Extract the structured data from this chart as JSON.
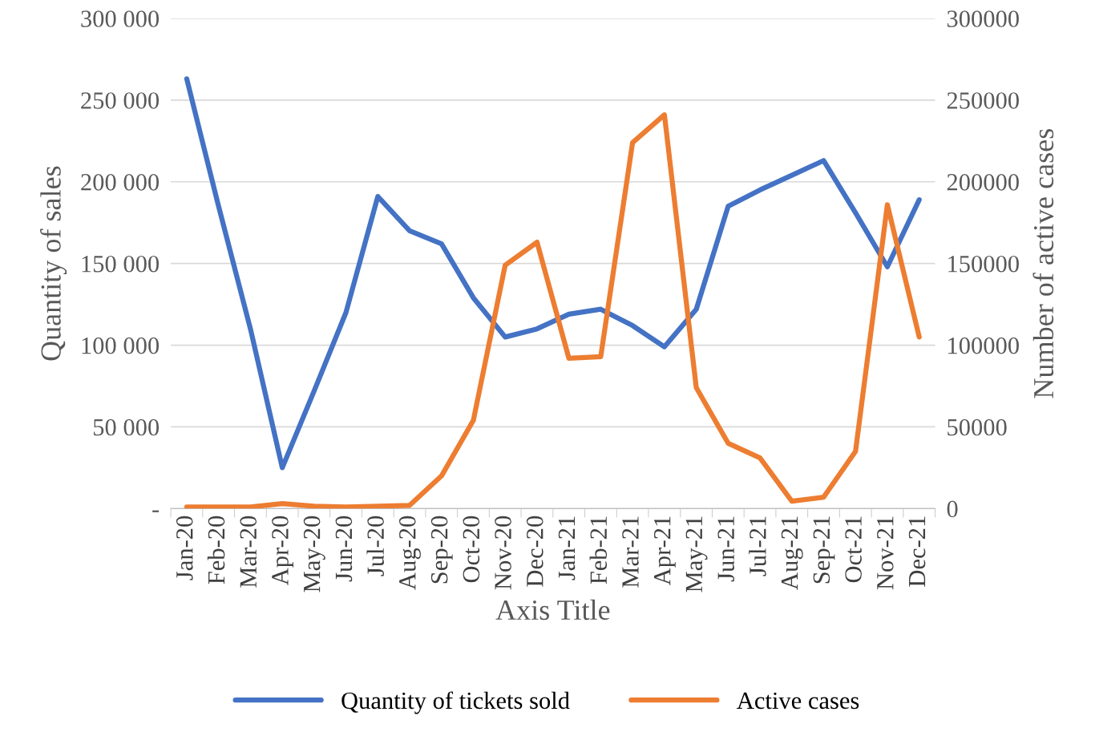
{
  "chart_data": {
    "type": "line",
    "xlabel": "Axis Title",
    "ylabel": "Quantity of sales",
    "y2label": "Number of active cases",
    "categories": [
      "Jan-20",
      "Feb-20",
      "Mar-20",
      "Apr-20",
      "May-20",
      "Jun-20",
      "Jul-20",
      "Aug-20",
      "Sep-20",
      "Oct-20",
      "Nov-20",
      "Dec-20",
      "Jan-21",
      "Feb-21",
      "Mar-21",
      "Apr-21",
      "May-21",
      "Jun-21",
      "Jul-21",
      "Aug-21",
      "Sep-21",
      "Oct-21",
      "Nov-21",
      "Dec-21"
    ],
    "series": [
      {
        "name": "Quantity of tickets sold",
        "color": "#4472c4",
        "values": [
          263000,
          185000,
          110000,
          25000,
          72000,
          120000,
          191000,
          170000,
          162000,
          129000,
          105000,
          110000,
          119000,
          122000,
          112000,
          99000,
          122000,
          185000,
          195000,
          204000,
          213000,
          181000,
          148000,
          189000
        ]
      },
      {
        "name": "Active cases",
        "color": "#ed7d31",
        "axis": "y2",
        "values": [
          1000,
          1000,
          1000,
          3000,
          1500,
          1000,
          1500,
          2000,
          20000,
          54000,
          149000,
          163000,
          92000,
          93000,
          224000,
          241000,
          74000,
          40000,
          31000,
          4500,
          7000,
          35000,
          186000,
          105000
        ]
      }
    ],
    "ylim": [
      0,
      300000
    ],
    "yticks": [
      {
        "value": 0,
        "label": "-"
      },
      {
        "value": 50000,
        "label": "50 000"
      },
      {
        "value": 100000,
        "label": "100 000"
      },
      {
        "value": 150000,
        "label": "150 000"
      },
      {
        "value": 200000,
        "label": "200 000"
      },
      {
        "value": 250000,
        "label": "250 000"
      },
      {
        "value": 300000,
        "label": "300 000"
      }
    ],
    "y2lim": [
      0,
      300000
    ],
    "y2ticks": [
      0,
      50000,
      100000,
      150000,
      200000,
      250000,
      300000
    ],
    "grid": "y",
    "legend": "bottom",
    "marker": "none",
    "line_style": "solid"
  }
}
